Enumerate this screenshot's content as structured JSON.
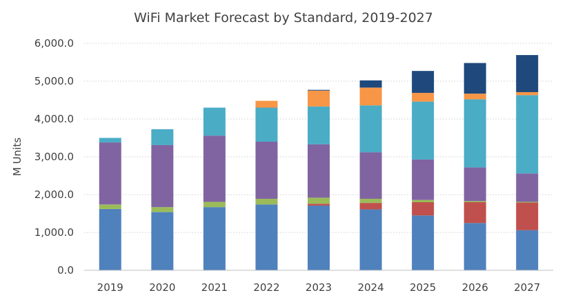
{
  "chart_data": {
    "type": "bar",
    "stacked": true,
    "title": "WiFi Market Forecast by Standard, 2019-2027",
    "xlabel": "",
    "ylabel": "M Units",
    "ylim": [
      0,
      6000
    ],
    "yticks": [
      "0.0",
      "1,000.0",
      "2,000.0",
      "3,000.0",
      "4,000.0",
      "5,000.0",
      "6,000.0"
    ],
    "grid": true,
    "legend": "none",
    "categories": [
      "2019",
      "2020",
      "2021",
      "2022",
      "2023",
      "2024",
      "2025",
      "2026",
      "2027"
    ],
    "series": [
      {
        "color": "#4f81bd",
        "values": [
          1620,
          1540,
          1670,
          1740,
          1710,
          1610,
          1450,
          1250,
          1060
        ]
      },
      {
        "color": "#c0504d",
        "values": [
          0,
          0,
          0,
          0,
          50,
          170,
          350,
          550,
          730
        ]
      },
      {
        "color": "#9bbb59",
        "values": [
          120,
          130,
          140,
          150,
          160,
          110,
          60,
          30,
          20
        ]
      },
      {
        "color": "#8064a2",
        "values": [
          1640,
          1640,
          1750,
          1510,
          1410,
          1230,
          1070,
          890,
          750
        ]
      },
      {
        "color": "#4bacc6",
        "values": [
          120,
          420,
          740,
          900,
          1000,
          1240,
          1530,
          1800,
          2070
        ]
      },
      {
        "color": "#f79646",
        "values": [
          0,
          0,
          0,
          180,
          420,
          470,
          230,
          150,
          80
        ]
      },
      {
        "color": "#1f497d",
        "values": [
          0,
          0,
          0,
          0,
          20,
          190,
          580,
          810,
          980
        ]
      }
    ]
  }
}
